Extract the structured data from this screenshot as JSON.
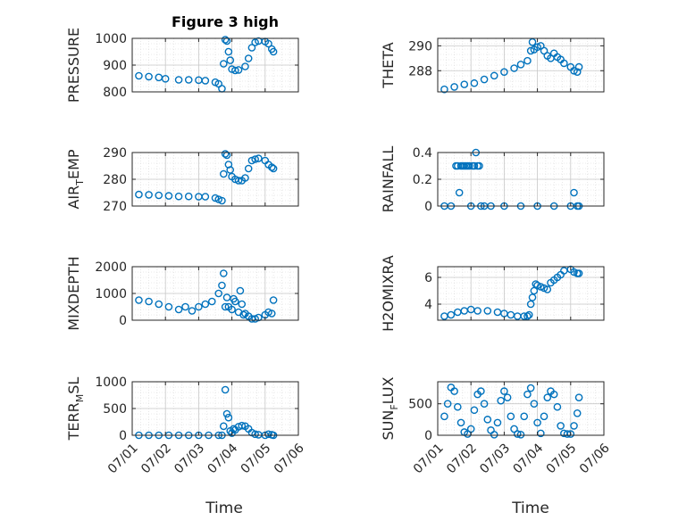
{
  "figure": {
    "title": "Figure 3 high",
    "marker_color": "#0072BD"
  },
  "x_axis": {
    "label": "Time",
    "range": [
      "2023-07-01",
      "2023-07-06"
    ],
    "tick_labels": [
      "07/01",
      "07/02",
      "07/03",
      "07/04",
      "07/05",
      "07/06"
    ]
  },
  "chart_data": [
    {
      "type": "scatter",
      "id": "pressure",
      "ylabel": "PRESSURE",
      "ylim": [
        800,
        1000
      ],
      "yticks": [
        800,
        900,
        1000
      ],
      "grid": true,
      "x_unit": "day",
      "x_origin": "2023-07-01",
      "x": [
        0.2,
        0.5,
        0.8,
        1.0,
        1.4,
        1.7,
        2.0,
        2.2,
        2.5,
        2.6,
        2.7,
        2.75,
        2.8,
        2.85,
        2.9,
        2.95,
        3.0,
        3.1,
        3.2,
        3.4,
        3.5,
        3.6,
        3.7,
        3.8,
        4.0,
        4.1,
        4.2,
        4.25
      ],
      "y": [
        860,
        857,
        854,
        849,
        845,
        845,
        844,
        842,
        836,
        830,
        812,
        905,
        995,
        990,
        950,
        918,
        885,
        880,
        882,
        895,
        925,
        965,
        985,
        990,
        988,
        980,
        960,
        950
      ]
    },
    {
      "type": "scatter",
      "id": "theta",
      "ylabel": "THETA",
      "ylim": [
        286.3,
        290.6
      ],
      "yticks": [
        288,
        290
      ],
      "grid": true,
      "x_unit": "day",
      "x_origin": "2023-07-01",
      "x": [
        0.2,
        0.5,
        0.8,
        1.1,
        1.4,
        1.7,
        2.0,
        2.3,
        2.5,
        2.7,
        2.8,
        2.85,
        2.9,
        3.0,
        3.1,
        3.2,
        3.3,
        3.4,
        3.5,
        3.6,
        3.7,
        3.8,
        4.0,
        4.1,
        4.2,
        4.25
      ],
      "y": [
        286.5,
        286.7,
        286.9,
        287.0,
        287.3,
        287.6,
        287.9,
        288.2,
        288.5,
        288.8,
        289.6,
        290.3,
        289.7,
        289.9,
        290.0,
        289.6,
        289.2,
        289.0,
        289.4,
        289.1,
        288.9,
        288.6,
        288.3,
        288.0,
        287.9,
        288.3
      ]
    },
    {
      "type": "scatter",
      "id": "air-temp",
      "ylabel": "AIR",
      "ylabel_sub": "T",
      "ylabel_rest": "EMP",
      "ylim": [
        270,
        290
      ],
      "yticks": [
        270,
        280,
        290
      ],
      "grid": true,
      "x_unit": "day",
      "x_origin": "2023-07-01",
      "x": [
        0.2,
        0.5,
        0.8,
        1.1,
        1.4,
        1.7,
        2.0,
        2.2,
        2.5,
        2.6,
        2.7,
        2.75,
        2.8,
        2.85,
        2.9,
        2.95,
        3.0,
        3.1,
        3.2,
        3.3,
        3.4,
        3.5,
        3.6,
        3.7,
        3.8,
        4.0,
        4.1,
        4.2,
        4.25
      ],
      "y": [
        274.3,
        274.2,
        274.0,
        273.8,
        273.6,
        273.6,
        273.5,
        273.5,
        273.0,
        272.5,
        272.0,
        282.0,
        289.5,
        289.0,
        285.5,
        283.5,
        281.0,
        280.0,
        279.5,
        279.5,
        280.5,
        284.0,
        287.0,
        287.5,
        287.8,
        287.0,
        285.5,
        284.5,
        284.0
      ]
    },
    {
      "type": "scatter",
      "id": "rainfall",
      "ylabel": "RAINFALL",
      "ylim": [
        0,
        0.4
      ],
      "yticks": [
        0,
        0.2,
        0.4
      ],
      "grid": true,
      "x_unit": "day",
      "x_origin": "2023-07-01",
      "x": [
        0.2,
        0.4,
        0.55,
        0.6,
        0.65,
        0.7,
        0.75,
        0.8,
        0.85,
        0.9,
        0.95,
        1.0,
        1.05,
        1.1,
        1.15,
        1.2,
        1.25,
        1.3,
        1.4,
        1.6,
        2.0,
        2.5,
        3.0,
        3.5,
        4.0,
        4.1,
        4.2,
        4.25
      ],
      "y": [
        0,
        0,
        0.3,
        0.3,
        0.1,
        0.3,
        0.3,
        0.3,
        0.3,
        0.3,
        0.3,
        0,
        0.3,
        0.3,
        0.4,
        0.3,
        0.3,
        0,
        0,
        0,
        0,
        0,
        0,
        0,
        0,
        0.1,
        0,
        0
      ]
    },
    {
      "type": "scatter",
      "id": "mixdepth",
      "ylabel": "MIXDEPTH",
      "ylim": [
        0,
        2000
      ],
      "yticks": [
        0,
        1000,
        2000
      ],
      "grid": true,
      "x_unit": "day",
      "x_origin": "2023-07-01",
      "x": [
        0.2,
        0.5,
        0.8,
        1.1,
        1.4,
        1.6,
        1.8,
        2.0,
        2.2,
        2.4,
        2.6,
        2.7,
        2.75,
        2.8,
        2.85,
        2.9,
        3.0,
        3.05,
        3.1,
        3.2,
        3.25,
        3.3,
        3.35,
        3.4,
        3.5,
        3.6,
        3.7,
        3.8,
        4.0,
        4.1,
        4.2,
        4.25
      ],
      "y": [
        750,
        700,
        600,
        500,
        400,
        500,
        350,
        500,
        600,
        700,
        1000,
        1300,
        1750,
        500,
        850,
        500,
        400,
        800,
        700,
        300,
        1100,
        600,
        200,
        250,
        150,
        50,
        50,
        100,
        200,
        300,
        250,
        750
      ]
    },
    {
      "type": "scatter",
      "id": "h2omixra",
      "ylabel": "H2OMIXRA",
      "ylim": [
        2.8,
        6.8
      ],
      "yticks": [
        4,
        6
      ],
      "grid": true,
      "x_unit": "day",
      "x_origin": "2023-07-01",
      "x": [
        0.2,
        0.4,
        0.6,
        0.8,
        1.0,
        1.2,
        1.5,
        1.8,
        2.0,
        2.2,
        2.4,
        2.6,
        2.7,
        2.75,
        2.8,
        2.85,
        2.9,
        2.95,
        3.0,
        3.1,
        3.2,
        3.3,
        3.4,
        3.5,
        3.6,
        3.7,
        3.8,
        4.0,
        4.1,
        4.2,
        4.25
      ],
      "y": [
        3.1,
        3.2,
        3.4,
        3.5,
        3.6,
        3.5,
        3.5,
        3.4,
        3.3,
        3.2,
        3.1,
        3.1,
        3.1,
        3.2,
        4.0,
        4.5,
        5.0,
        5.5,
        5.4,
        5.3,
        5.2,
        5.1,
        5.6,
        5.8,
        6.0,
        6.2,
        6.5,
        6.6,
        6.4,
        6.3,
        6.3
      ]
    },
    {
      "type": "scatter",
      "id": "terr-msl",
      "ylabel": "TERR",
      "ylabel_sub": "M",
      "ylabel_rest": "SL",
      "ylim": [
        0,
        1000
      ],
      "yticks": [
        0,
        500,
        1000
      ],
      "grid": true,
      "x_unit": "day",
      "x_origin": "2023-07-01",
      "x": [
        0.2,
        0.5,
        0.8,
        1.1,
        1.4,
        1.7,
        2.0,
        2.3,
        2.6,
        2.7,
        2.75,
        2.8,
        2.85,
        2.9,
        2.95,
        3.0,
        3.05,
        3.1,
        3.2,
        3.3,
        3.4,
        3.5,
        3.6,
        3.7,
        3.8,
        4.0,
        4.1,
        4.2,
        4.25
      ],
      "y": [
        0,
        0,
        0,
        0,
        0,
        0,
        0,
        0,
        0,
        0,
        170,
        850,
        400,
        330,
        80,
        40,
        120,
        100,
        160,
        180,
        170,
        120,
        50,
        20,
        10,
        0,
        20,
        10,
        0
      ]
    },
    {
      "type": "scatter",
      "id": "sun-flux",
      "ylabel": "SUN",
      "ylabel_sub": "F",
      "ylabel_rest": "LUX",
      "ylim": [
        0,
        850
      ],
      "yticks": [
        0,
        500
      ],
      "grid": true,
      "x_unit": "day",
      "x_origin": "2023-07-01",
      "x": [
        0.2,
        0.3,
        0.4,
        0.5,
        0.6,
        0.7,
        0.8,
        0.9,
        1.0,
        1.1,
        1.2,
        1.3,
        1.4,
        1.5,
        1.6,
        1.7,
        1.8,
        1.9,
        2.0,
        2.1,
        2.2,
        2.3,
        2.4,
        2.5,
        2.6,
        2.7,
        2.8,
        2.9,
        3.0,
        3.1,
        3.2,
        3.3,
        3.4,
        3.5,
        3.6,
        3.7,
        3.8,
        3.9,
        4.0,
        4.1,
        4.2,
        4.25
      ],
      "y": [
        300,
        500,
        760,
        700,
        450,
        200,
        50,
        20,
        100,
        400,
        650,
        700,
        500,
        250,
        80,
        10,
        200,
        550,
        700,
        600,
        300,
        100,
        20,
        10,
        300,
        650,
        750,
        500,
        200,
        30,
        300,
        600,
        700,
        650,
        450,
        150,
        30,
        20,
        20,
        150,
        350,
        600
      ]
    }
  ]
}
